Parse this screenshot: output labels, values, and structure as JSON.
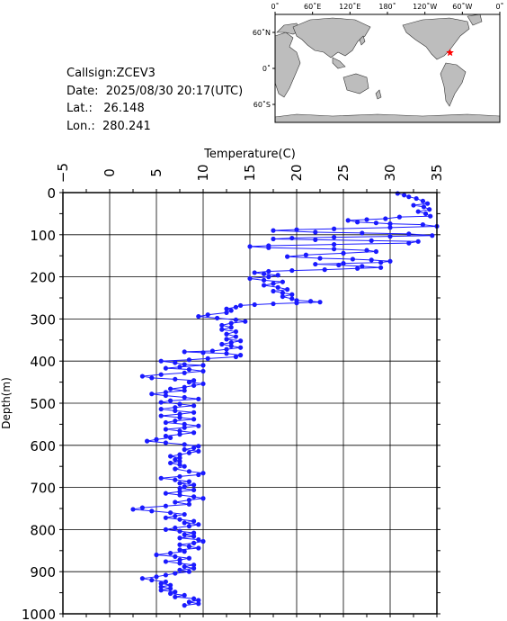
{
  "info": {
    "callsign": "Callsign:ZCEV3",
    "date_label": "Date:",
    "date_value": "2025/08/30 20:17(UTC)",
    "lat_label": "Lat.:",
    "lat_value": "26.148",
    "lon_label": "Lon.:",
    "lon_value": "280.241"
  },
  "map": {
    "lon_ticks": [
      "0˚",
      "60˚E",
      "120˚E",
      "180˚",
      "120˚W",
      "60˚W",
      "0˚"
    ],
    "lat_ticks": [
      "60˚N",
      "0˚",
      "60˚S"
    ],
    "ocean_color": "#ffffff",
    "land_color": "#bdbdbd",
    "marker_color": "#ff0000",
    "marker_lat": 26.148,
    "marker_lon": 280.241
  },
  "chart_data": {
    "type": "line",
    "xlabel": "Temperature(C)",
    "ylabel": "Depth(m)",
    "xlim": [
      -5,
      35
    ],
    "ylim": [
      0,
      1000
    ],
    "x_ticks": [
      -5,
      0,
      5,
      10,
      15,
      20,
      25,
      30,
      35
    ],
    "y_ticks": [
      0,
      100,
      200,
      300,
      400,
      500,
      600,
      700,
      800,
      900,
      1000
    ],
    "y_inverted": true,
    "x_axis_position": "top",
    "grid": true,
    "series_color": "#1a1aff",
    "series": [
      {
        "points": [
          [
            30.8,
            2
          ],
          [
            31.5,
            6
          ],
          [
            32.0,
            10
          ],
          [
            32.8,
            14
          ],
          [
            33.5,
            20
          ],
          [
            34.0,
            26
          ],
          [
            32.5,
            30
          ],
          [
            33.6,
            34
          ],
          [
            34.2,
            40
          ],
          [
            33.0,
            45
          ],
          [
            33.8,
            50
          ],
          [
            34.3,
            56
          ],
          [
            31.0,
            58
          ],
          [
            29.5,
            62
          ],
          [
            27.5,
            64
          ],
          [
            25.5,
            66
          ],
          [
            26.5,
            70
          ],
          [
            28.5,
            72
          ],
          [
            30.0,
            74
          ],
          [
            33.5,
            76
          ],
          [
            35.0,
            80
          ],
          [
            30.0,
            83
          ],
          [
            24.0,
            86
          ],
          [
            20.0,
            88
          ],
          [
            17.5,
            90
          ],
          [
            22.0,
            94
          ],
          [
            27.0,
            96
          ],
          [
            32.0,
            98
          ],
          [
            34.5,
            102
          ],
          [
            30.0,
            104
          ],
          [
            24.0,
            106
          ],
          [
            19.5,
            108
          ],
          [
            17.5,
            110
          ],
          [
            22.0,
            112
          ],
          [
            28.0,
            114
          ],
          [
            33.0,
            116
          ],
          [
            32.0,
            120
          ],
          [
            24.0,
            123
          ],
          [
            17.0,
            126
          ],
          [
            15.0,
            128
          ],
          [
            17.0,
            131
          ],
          [
            24.0,
            134
          ],
          [
            27.5,
            137
          ],
          [
            28.5,
            140
          ],
          [
            25.0,
            144
          ],
          [
            21.0,
            148
          ],
          [
            19.0,
            152
          ],
          [
            22.5,
            156
          ],
          [
            26.0,
            158
          ],
          [
            28.0,
            160
          ],
          [
            30.0,
            163
          ],
          [
            29.0,
            166
          ],
          [
            25.0,
            168
          ],
          [
            22.0,
            170
          ],
          [
            24.5,
            172
          ],
          [
            27.0,
            175
          ],
          [
            29.0,
            178
          ],
          [
            26.5,
            180
          ],
          [
            23.0,
            183
          ],
          [
            19.5,
            185
          ],
          [
            17.0,
            187
          ],
          [
            15.5,
            190
          ],
          [
            16.5,
            193
          ],
          [
            18.0,
            196
          ],
          [
            17.0,
            200
          ],
          [
            15.0,
            204
          ],
          [
            16.5,
            208
          ],
          [
            18.5,
            212
          ],
          [
            17.5,
            216
          ],
          [
            16.5,
            220
          ],
          [
            18.0,
            225
          ],
          [
            19.0,
            230
          ],
          [
            17.5,
            234
          ],
          [
            18.5,
            238
          ],
          [
            19.5,
            242
          ],
          [
            18.5,
            247
          ],
          [
            19.5,
            252
          ],
          [
            20.0,
            256
          ],
          [
            21.5,
            258
          ],
          [
            22.5,
            260
          ],
          [
            20.0,
            262
          ],
          [
            17.5,
            264
          ],
          [
            15.5,
            266
          ],
          [
            14.0,
            268
          ],
          [
            13.5,
            272
          ],
          [
            12.5,
            276
          ],
          [
            13.0,
            280
          ],
          [
            12.5,
            285
          ],
          [
            10.5,
            290
          ],
          [
            9.5,
            294
          ],
          [
            11.5,
            298
          ],
          [
            13.5,
            302
          ],
          [
            14.5,
            306
          ],
          [
            13.0,
            310
          ],
          [
            12.0,
            315
          ],
          [
            13.0,
            320
          ],
          [
            12.0,
            325
          ],
          [
            13.5,
            330
          ],
          [
            12.5,
            336
          ],
          [
            13.5,
            342
          ],
          [
            12.5,
            348
          ],
          [
            14.0,
            352
          ],
          [
            13.0,
            356
          ],
          [
            12.0,
            360
          ],
          [
            13.0,
            364
          ],
          [
            14.0,
            368
          ],
          [
            12.5,
            372
          ],
          [
            11.0,
            376
          ],
          [
            8.0,
            378
          ],
          [
            10.0,
            380
          ],
          [
            12.5,
            382
          ],
          [
            14.0,
            386
          ],
          [
            13.5,
            390
          ],
          [
            10.5,
            394
          ],
          [
            8.5,
            397
          ],
          [
            5.5,
            400
          ],
          [
            7.0,
            404
          ],
          [
            8.0,
            408
          ],
          [
            10.0,
            410
          ],
          [
            7.5,
            414
          ],
          [
            6.0,
            417
          ],
          [
            8.5,
            420
          ],
          [
            10.0,
            424
          ],
          [
            8.0,
            428
          ],
          [
            5.5,
            432
          ],
          [
            3.5,
            436
          ],
          [
            4.5,
            440
          ],
          [
            7.0,
            443
          ],
          [
            9.0,
            446
          ],
          [
            8.5,
            450
          ],
          [
            10.0,
            454
          ],
          [
            9.0,
            458
          ],
          [
            8.0,
            462
          ],
          [
            6.5,
            466
          ],
          [
            8.0,
            470
          ],
          [
            6.0,
            474
          ],
          [
            4.5,
            478
          ],
          [
            6.0,
            482
          ],
          [
            8.0,
            486
          ],
          [
            9.5,
            490
          ],
          [
            6.5,
            494
          ],
          [
            5.5,
            498
          ],
          [
            7.5,
            502
          ],
          [
            9.0,
            506
          ],
          [
            7.0,
            510
          ],
          [
            5.5,
            514
          ],
          [
            7.0,
            518
          ],
          [
            9.0,
            522
          ],
          [
            7.5,
            526
          ],
          [
            5.5,
            530
          ],
          [
            7.5,
            534
          ],
          [
            9.0,
            538
          ],
          [
            7.0,
            542
          ],
          [
            6.0,
            546
          ],
          [
            8.0,
            550
          ],
          [
            9.5,
            554
          ],
          [
            8.0,
            558
          ],
          [
            6.0,
            562
          ],
          [
            7.5,
            566
          ],
          [
            9.0,
            570
          ],
          [
            7.5,
            574
          ],
          [
            6.0,
            578
          ],
          [
            6.5,
            582
          ],
          [
            5.0,
            586
          ],
          [
            4.0,
            590
          ],
          [
            6.0,
            594
          ],
          [
            8.0,
            598
          ],
          [
            9.5,
            602
          ],
          [
            9.0,
            606
          ],
          [
            8.0,
            610
          ],
          [
            9.5,
            614
          ],
          [
            8.5,
            618
          ],
          [
            7.5,
            622
          ],
          [
            6.5,
            626
          ],
          [
            7.5,
            630
          ],
          [
            7.0,
            634
          ],
          [
            7.5,
            638
          ],
          [
            6.5,
            642
          ],
          [
            7.5,
            646
          ],
          [
            8.0,
            650
          ],
          [
            7.0,
            656
          ],
          [
            8.5,
            662
          ],
          [
            10.0,
            666
          ],
          [
            9.5,
            670
          ],
          [
            7.5,
            674
          ],
          [
            5.5,
            678
          ],
          [
            7.0,
            682
          ],
          [
            8.5,
            686
          ],
          [
            7.5,
            690
          ],
          [
            9.0,
            694
          ],
          [
            8.0,
            698
          ],
          [
            7.5,
            702
          ],
          [
            9.0,
            706
          ],
          [
            7.5,
            710
          ],
          [
            6.0,
            714
          ],
          [
            7.5,
            718
          ],
          [
            9.0,
            722
          ],
          [
            10.0,
            726
          ],
          [
            8.5,
            730
          ],
          [
            7.0,
            735
          ],
          [
            8.5,
            740
          ],
          [
            6.0,
            744
          ],
          [
            3.5,
            748
          ],
          [
            2.5,
            752
          ],
          [
            4.5,
            756
          ],
          [
            6.5,
            760
          ],
          [
            8.0,
            764
          ],
          [
            7.0,
            768
          ],
          [
            6.0,
            772
          ],
          [
            7.5,
            776
          ],
          [
            9.0,
            780
          ],
          [
            8.0,
            784
          ],
          [
            9.5,
            788
          ],
          [
            8.5,
            792
          ],
          [
            7.0,
            796
          ],
          [
            6.0,
            800
          ],
          [
            7.5,
            804
          ],
          [
            9.0,
            808
          ],
          [
            8.0,
            812
          ],
          [
            9.0,
            816
          ],
          [
            7.5,
            820
          ],
          [
            9.5,
            824
          ],
          [
            10.0,
            828
          ],
          [
            9.0,
            832
          ],
          [
            7.5,
            836
          ],
          [
            8.5,
            840
          ],
          [
            9.5,
            844
          ],
          [
            7.5,
            848
          ],
          [
            8.0,
            852
          ],
          [
            6.5,
            856
          ],
          [
            5.0,
            860
          ],
          [
            7.0,
            864
          ],
          [
            8.5,
            868
          ],
          [
            7.5,
            872
          ],
          [
            6.0,
            876
          ],
          [
            7.5,
            880
          ],
          [
            9.0,
            884
          ],
          [
            8.0,
            888
          ],
          [
            9.0,
            892
          ],
          [
            7.5,
            896
          ],
          [
            8.5,
            900
          ],
          [
            7.0,
            904
          ],
          [
            6.0,
            908
          ],
          [
            5.0,
            912
          ],
          [
            3.5,
            916
          ],
          [
            4.5,
            920
          ],
          [
            6.0,
            924
          ],
          [
            5.5,
            928
          ],
          [
            6.5,
            932
          ],
          [
            5.5,
            936
          ],
          [
            6.5,
            940
          ],
          [
            5.5,
            944
          ],
          [
            7.0,
            948
          ],
          [
            6.5,
            952
          ],
          [
            8.0,
            956
          ],
          [
            7.0,
            960
          ],
          [
            9.0,
            964
          ],
          [
            9.5,
            968
          ],
          [
            8.5,
            972
          ],
          [
            9.5,
            976
          ],
          [
            8.0,
            980
          ]
        ]
      }
    ]
  }
}
